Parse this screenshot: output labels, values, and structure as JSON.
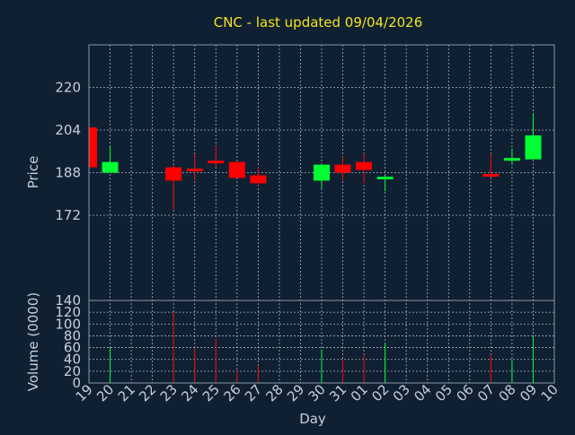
{
  "chart_data": {
    "type": "candlestick",
    "title": "CNC - last updated 09/04/2026",
    "colors": {
      "background": "#0f2033",
      "title": "#f5e31b",
      "up": "#00ff33",
      "down": "#ff0000",
      "text": "#c7cfd8",
      "grid": "#a9b3bd"
    },
    "x": {
      "label": "Day",
      "ticks": [
        "19",
        "20",
        "21",
        "22",
        "23",
        "24",
        "25",
        "26",
        "27",
        "28",
        "29",
        "30",
        "31",
        "01",
        "02",
        "03",
        "04",
        "05",
        "06",
        "07",
        "08",
        "09",
        "10"
      ]
    },
    "price": {
      "ylabel": "Price",
      "ylim": [
        140,
        236
      ],
      "ticks": [
        "140",
        "172",
        "188",
        "204",
        "220"
      ],
      "tick_values": [
        140,
        172,
        188,
        204,
        220
      ],
      "candles": [
        {
          "day": "19",
          "open": 205,
          "high": 205,
          "low": 190,
          "close": 190
        },
        {
          "day": "20",
          "open": 188,
          "high": 198,
          "low": 188,
          "close": 192
        },
        {
          "day": "23",
          "open": 190,
          "high": 191,
          "low": 174,
          "close": 185
        },
        {
          "day": "24",
          "open": 189,
          "high": 195,
          "low": 185,
          "close": 188
        },
        {
          "day": "25",
          "open": 192,
          "high": 198,
          "low": 190,
          "close": 191
        },
        {
          "day": "26",
          "open": 192,
          "high": 192,
          "low": 186,
          "close": 186
        },
        {
          "day": "27",
          "open": 187,
          "high": 190,
          "low": 183,
          "close": 184
        },
        {
          "day": "30",
          "open": 185,
          "high": 191,
          "low": 182,
          "close": 191
        },
        {
          "day": "31",
          "open": 191,
          "high": 194,
          "low": 185,
          "close": 188
        },
        {
          "day": "01",
          "open": 192,
          "high": 195,
          "low": 184,
          "close": 189
        },
        {
          "day": "02",
          "open": 185,
          "high": 187,
          "low": 181,
          "close": 186
        },
        {
          "day": "07",
          "open": 187,
          "high": 195,
          "low": 186,
          "close": 186
        },
        {
          "day": "08",
          "open": 192,
          "high": 197,
          "low": 191,
          "close": 193
        },
        {
          "day": "09",
          "open": 193,
          "high": 210,
          "low": 193,
          "close": 202
        }
      ]
    },
    "volume": {
      "ylabel": "Volume (0000)",
      "ylim": [
        0,
        140
      ],
      "ticks": [
        "0",
        "20",
        "40",
        "60",
        "80",
        "100",
        "120"
      ],
      "tick_values": [
        0,
        20,
        40,
        60,
        80,
        100,
        120
      ],
      "bars": [
        {
          "day": "19",
          "value": 0,
          "dir": "down"
        },
        {
          "day": "20",
          "value": 60,
          "dir": "up"
        },
        {
          "day": "23",
          "value": 120,
          "dir": "down"
        },
        {
          "day": "24",
          "value": 60,
          "dir": "down"
        },
        {
          "day": "25",
          "value": 75,
          "dir": "down"
        },
        {
          "day": "26",
          "value": 20,
          "dir": "down"
        },
        {
          "day": "27",
          "value": 30,
          "dir": "down"
        },
        {
          "day": "30",
          "value": 57,
          "dir": "up"
        },
        {
          "day": "31",
          "value": 40,
          "dir": "down"
        },
        {
          "day": "01",
          "value": 48,
          "dir": "down"
        },
        {
          "day": "02",
          "value": 68,
          "dir": "up"
        },
        {
          "day": "07",
          "value": 48,
          "dir": "down"
        },
        {
          "day": "08",
          "value": 40,
          "dir": "up"
        },
        {
          "day": "09",
          "value": 80,
          "dir": "up"
        }
      ]
    }
  }
}
